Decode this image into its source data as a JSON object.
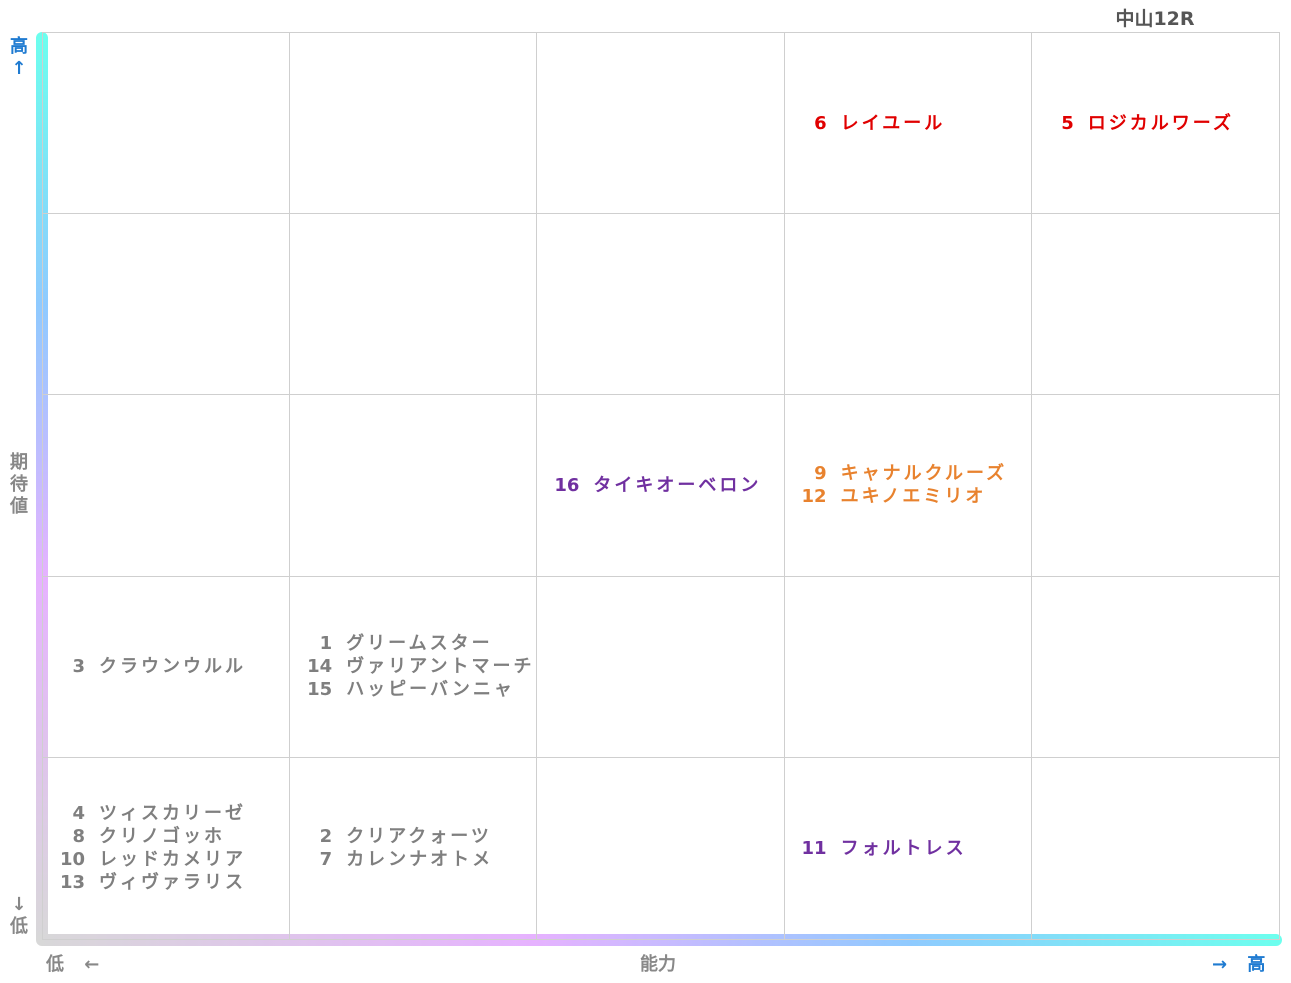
{
  "title": "中山12R",
  "axes": {
    "y_high": "高",
    "y_high_arrow": "↑",
    "y_label_chars": [
      "期",
      "待",
      "値"
    ],
    "y_low_arrow": "↓",
    "y_low": "低",
    "x_low": "低",
    "x_low_arrow": "←",
    "x_label": "能力",
    "x_high_arrow": "→",
    "x_high": "高"
  },
  "colors": {
    "red": "#e00000",
    "orange": "#e8822e",
    "purple": "#7030a0",
    "gray": "#7f7f7f",
    "axis_blue": "#1f7bd1"
  },
  "chart_data": {
    "type": "table",
    "title": "中山12R",
    "xlabel": "能力",
    "ylabel": "期待値",
    "columns": 5,
    "rows": 5,
    "cells": [
      {
        "row": 1,
        "col": 4,
        "color": "red",
        "entries": [
          {
            "num": "6",
            "name": "レイユール"
          }
        ]
      },
      {
        "row": 1,
        "col": 5,
        "color": "red",
        "entries": [
          {
            "num": "5",
            "name": "ロジカルワーズ"
          }
        ]
      },
      {
        "row": 3,
        "col": 3,
        "color": "purple",
        "entries": [
          {
            "num": "16",
            "name": "タイキオーベロン"
          }
        ]
      },
      {
        "row": 3,
        "col": 4,
        "color": "orange",
        "entries": [
          {
            "num": "9",
            "name": "キャナルクルーズ"
          },
          {
            "num": "12",
            "name": "ユキノエミリオ"
          }
        ]
      },
      {
        "row": 4,
        "col": 1,
        "color": "gray",
        "entries": [
          {
            "num": "3",
            "name": "クラウンウルル"
          }
        ]
      },
      {
        "row": 4,
        "col": 2,
        "color": "gray",
        "entries": [
          {
            "num": "1",
            "name": "グリームスター"
          },
          {
            "num": "14",
            "name": "ヴァリアントマーチ"
          },
          {
            "num": "15",
            "name": "ハッピーバンニャ"
          }
        ]
      },
      {
        "row": 5,
        "col": 1,
        "color": "gray",
        "entries": [
          {
            "num": "4",
            "name": "ツィスカリーゼ"
          },
          {
            "num": "8",
            "name": "クリノゴッホ"
          },
          {
            "num": "10",
            "name": "レッドカメリア"
          },
          {
            "num": "13",
            "name": "ヴィヴァラリス"
          }
        ]
      },
      {
        "row": 5,
        "col": 2,
        "color": "gray",
        "entries": [
          {
            "num": "2",
            "name": "クリアクォーツ"
          },
          {
            "num": "7",
            "name": "カレンナオトメ"
          }
        ]
      },
      {
        "row": 5,
        "col": 4,
        "color": "purple",
        "entries": [
          {
            "num": "11",
            "name": "フォルトレス"
          }
        ]
      }
    ]
  }
}
